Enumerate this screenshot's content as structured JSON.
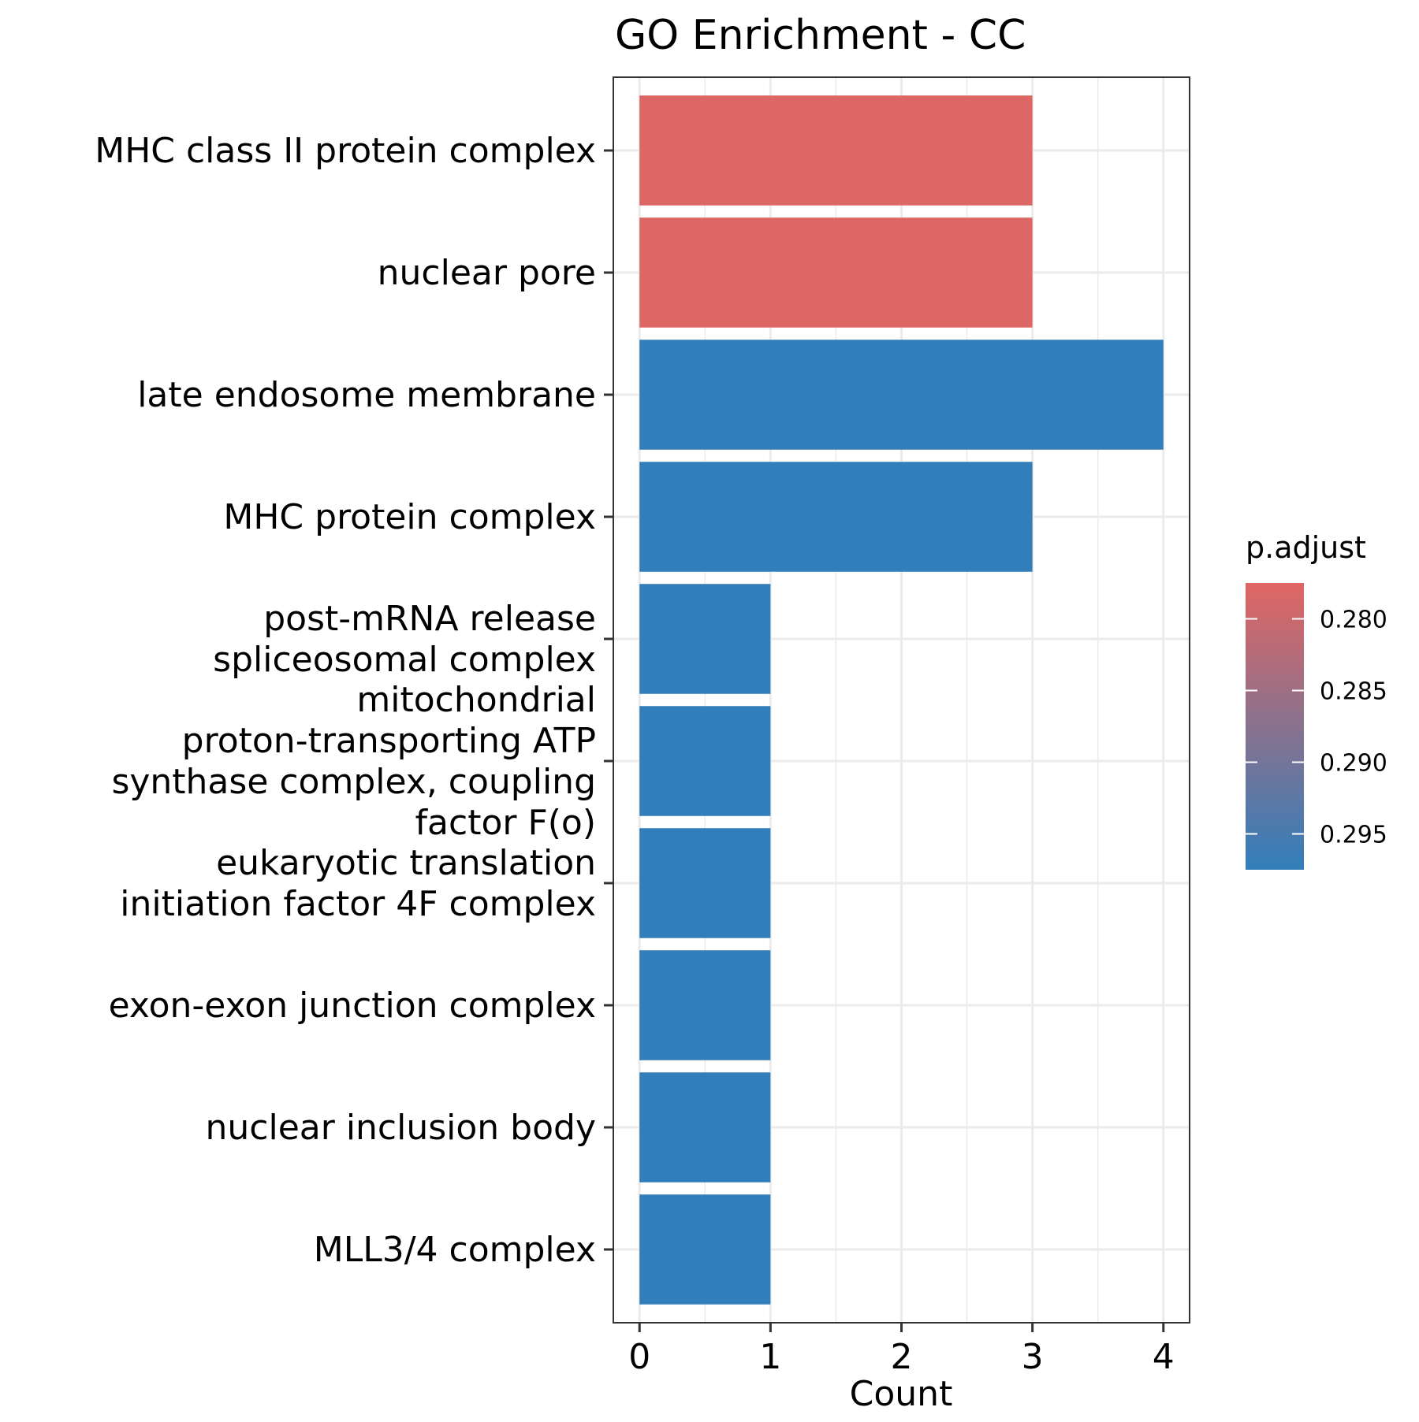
{
  "chart_data": {
    "type": "bar",
    "orientation": "horizontal",
    "title": "GO Enrichment - CC",
    "xlabel": "Count",
    "ylabel": "",
    "xlim": [
      0,
      4
    ],
    "x_ticks": [
      "0",
      "1",
      "2",
      "3",
      "4"
    ],
    "grid": true,
    "categories": [
      "MHC class II protein complex",
      "nuclear pore",
      "late endosome membrane",
      "MHC protein complex",
      "post-mRNA release spliceosomal complex",
      "mitochondrial proton-transporting ATP synthase complex, coupling factor F(o)",
      "eukaryotic translation initiation factor 4F complex",
      "exon-exon junction complex",
      "nuclear inclusion body",
      "MLL3/4 complex"
    ],
    "category_label_lines": [
      [
        "MHC class II protein complex"
      ],
      [
        "nuclear pore"
      ],
      [
        "late endosome membrane"
      ],
      [
        "MHC protein complex"
      ],
      [
        "post-mRNA release",
        "spliceosomal complex"
      ],
      [
        "mitochondrial",
        "proton-transporting ATP",
        "synthase complex, coupling",
        "factor F(o)"
      ],
      [
        "eukaryotic translation",
        "initiation factor 4F complex"
      ],
      [
        "exon-exon junction complex"
      ],
      [
        "nuclear inclusion body"
      ],
      [
        "MLL3/4 complex"
      ]
    ],
    "values": [
      3,
      3,
      4,
      3,
      1,
      1,
      1,
      1,
      1,
      1
    ],
    "p_adjust": [
      0.278,
      0.278,
      0.298,
      0.298,
      0.298,
      0.298,
      0.298,
      0.298,
      0.298,
      0.298
    ],
    "legend": {
      "title": "p.adjust",
      "position": "right",
      "ticks": [
        "0.280",
        "0.285",
        "0.290",
        "0.295"
      ],
      "tick_values": [
        0.28,
        0.285,
        0.29,
        0.295
      ],
      "range": [
        0.2775,
        0.2975
      ],
      "low_color": "#e06663",
      "high_color": "#327eba"
    }
  }
}
